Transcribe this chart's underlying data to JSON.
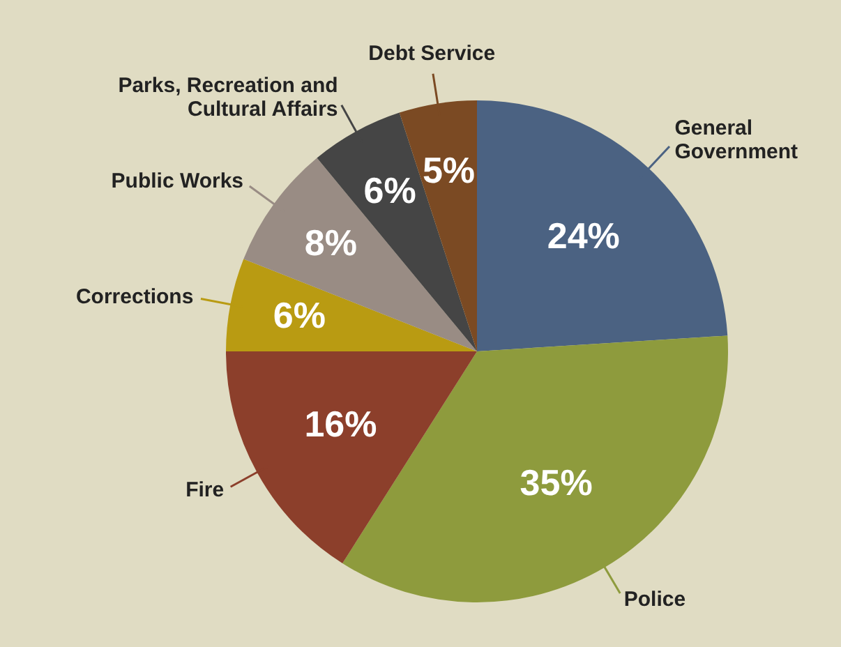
{
  "chart_data": {
    "type": "pie",
    "categories": [
      "General Government",
      "Police",
      "Fire",
      "Corrections",
      "Public Works",
      "Parks, Recreation and Cultural Affairs",
      "Debt Service"
    ],
    "values": [
      24,
      35,
      16,
      6,
      8,
      6,
      5
    ],
    "colors": [
      "#4b6282",
      "#8e9b3d",
      "#8c3f2b",
      "#b99b12",
      "#998c84",
      "#454545",
      "#7b4a23"
    ],
    "value_labels": [
      "24%",
      "35%",
      "16%",
      "6%",
      "8%",
      "6%",
      "5%"
    ],
    "legend": false
  }
}
